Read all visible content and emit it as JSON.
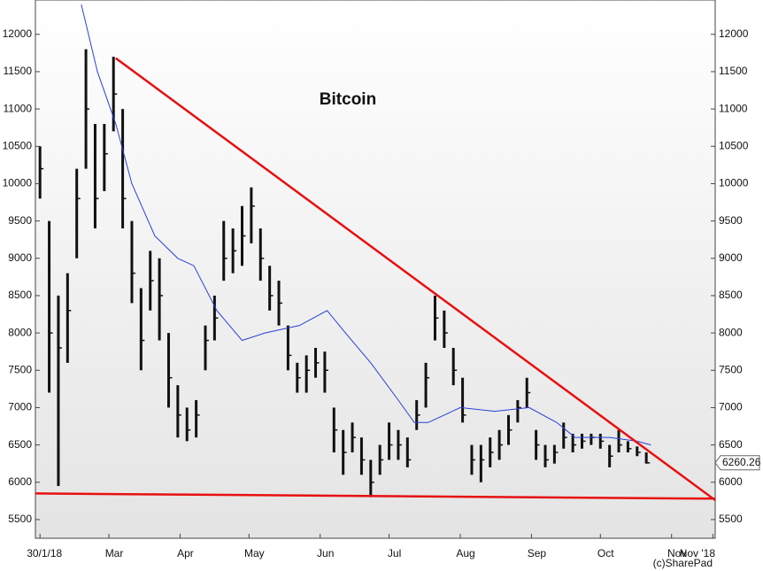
{
  "chart_data": {
    "type": "ohlc",
    "title": "Bitcoin",
    "credit": "(c)SharePad",
    "xlim": [
      -2,
      294
    ],
    "xticks": [
      {
        "value": 0,
        "label": "30/1/18"
      },
      {
        "value": 30,
        "label": "Mar"
      },
      {
        "value": 61,
        "label": "Apr"
      },
      {
        "value": 91,
        "label": "May"
      },
      {
        "value": 122,
        "label": "Jun"
      },
      {
        "value": 152,
        "label": "Jul"
      },
      {
        "value": 183,
        "label": "Aug"
      },
      {
        "value": 214,
        "label": "Sep"
      },
      {
        "value": 244,
        "label": "Oct"
      },
      {
        "value": 275,
        "label": "Nov"
      },
      {
        "value": 293,
        "label": "Nov '18"
      }
    ],
    "ylim": [
      5250,
      12460
    ],
    "yticks": [
      5500,
      6000,
      6500,
      7000,
      7500,
      8000,
      8500,
      9000,
      9500,
      10000,
      10500,
      11000,
      11500,
      12000
    ],
    "bar_color": "#111111",
    "x": [
      0,
      4,
      8,
      12,
      16,
      20,
      24,
      28,
      32,
      36,
      40,
      44,
      48,
      52,
      56,
      60,
      64,
      68,
      72,
      76,
      80,
      84,
      88,
      92,
      96,
      100,
      104,
      108,
      112,
      116,
      120,
      124,
      128,
      132,
      136,
      140,
      144,
      148,
      152,
      156,
      160,
      164,
      168,
      172,
      176,
      180,
      184,
      188,
      192,
      196,
      200,
      204,
      208,
      212,
      216,
      220,
      224,
      228,
      232,
      236,
      240,
      244,
      248,
      252,
      256,
      260,
      264
    ],
    "high": [
      10500,
      9500,
      8500,
      8800,
      10200,
      11800,
      10800,
      10800,
      11700,
      11000,
      9500,
      8600,
      9100,
      9000,
      8000,
      7300,
      7000,
      7100,
      8100,
      8500,
      9500,
      9400,
      9700,
      9950,
      9400,
      8900,
      8700,
      8100,
      7600,
      7700,
      7800,
      7750,
      7000,
      6700,
      6800,
      6600,
      6300,
      6500,
      6800,
      6700,
      6600,
      7100,
      7600,
      8500,
      8300,
      7800,
      7400,
      6500,
      6500,
      6600,
      6700,
      6900,
      7100,
      7400,
      6700,
      6500,
      6500,
      6800,
      6650,
      6650,
      6650,
      6650,
      6500,
      6700,
      6550,
      6480,
      6400
    ],
    "low": [
      9800,
      7200,
      5950,
      7600,
      9000,
      10200,
      9400,
      9900,
      10700,
      9400,
      8400,
      7500,
      8300,
      7900,
      7000,
      6600,
      6550,
      6600,
      7500,
      7900,
      8700,
      8800,
      8900,
      9200,
      8700,
      8300,
      8100,
      7500,
      7200,
      7200,
      7400,
      7200,
      6400,
      6100,
      6400,
      6100,
      5800,
      6100,
      6300,
      6300,
      6200,
      6700,
      7000,
      7900,
      7800,
      7300,
      6800,
      6100,
      6000,
      6200,
      6300,
      6500,
      6800,
      7000,
      6300,
      6200,
      6250,
      6450,
      6400,
      6450,
      6500,
      6450,
      6200,
      6400,
      6400,
      6350,
      6250
    ],
    "close": [
      10200,
      8000,
      7800,
      8300,
      9800,
      11000,
      9800,
      10400,
      11200,
      9800,
      8800,
      7900,
      8700,
      8500,
      7400,
      6900,
      6700,
      6900,
      7900,
      8200,
      9000,
      9100,
      9300,
      9700,
      9000,
      8500,
      8400,
      7700,
      7400,
      7500,
      7600,
      7500,
      6700,
      6400,
      6600,
      6300,
      6000,
      6300,
      6500,
      6500,
      6300,
      6900,
      7400,
      8200,
      8000,
      7500,
      6900,
      6300,
      6300,
      6400,
      6500,
      6700,
      7000,
      7200,
      6500,
      6300,
      6400,
      6600,
      6500,
      6550,
      6600,
      6550,
      6350,
      6500,
      6450,
      6400,
      6260.26
    ],
    "ma": {
      "color": "#2a3fd6",
      "x": [
        18,
        25,
        33,
        40,
        50,
        60,
        67,
        77,
        88,
        98,
        113,
        125,
        133,
        144,
        156,
        163,
        169,
        183,
        198,
        213,
        225,
        233,
        248,
        260,
        266
      ],
      "values": [
        12400,
        11500,
        10800,
        10000,
        9300,
        9000,
        8900,
        8300,
        7900,
        8000,
        8100,
        8300,
        8000,
        7600,
        7100,
        6800,
        6800,
        7000,
        6950,
        7000,
        6800,
        6600,
        6600,
        6550,
        6500
      ]
    },
    "trendlines": [
      {
        "color": "#e81010",
        "x": [
          33,
          294
        ],
        "y": [
          11680,
          5760
        ]
      },
      {
        "color": "#e81010",
        "x": [
          -2,
          294
        ],
        "y": [
          5850,
          5780
        ]
      }
    ]
  }
}
